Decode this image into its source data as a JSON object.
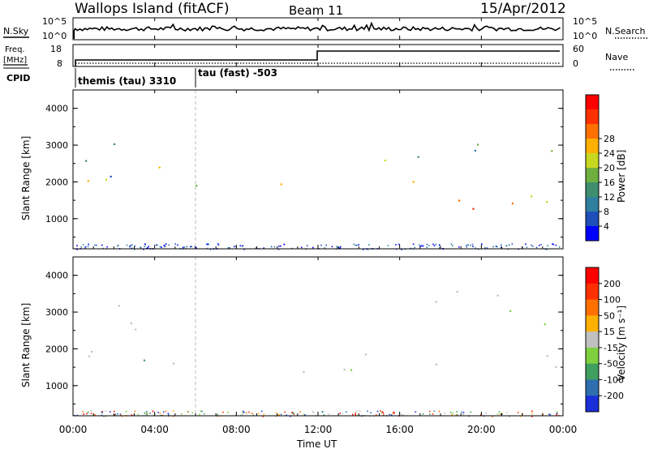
{
  "header": {
    "station": "Wallops Island (fitACF)",
    "beam": "Beam 11",
    "date": "15/Apr/2012"
  },
  "noise_panel": {
    "left_label": "N.Sky",
    "right_label": "N.Search",
    "left_top": "10^5",
    "left_bottom": "10^0",
    "right_top": "10^5",
    "right_bottom": "10^0"
  },
  "freq_panel": {
    "label_line1": "Freq.",
    "label_line2": "[MHz]",
    "left_top": "18",
    "left_bottom": "8",
    "right_top": "60",
    "right_bottom": "0",
    "right_label": "Nave"
  },
  "cpid_panel": {
    "label": "CPID",
    "program1": "themis (tau) 3310",
    "program2": "tau (fast) -503"
  },
  "power_panel": {
    "ylabel": "Slant Range [km]",
    "yticks": [
      "1000",
      "2000",
      "3000",
      "4000"
    ],
    "colorbar_title": "Power [dB]",
    "colorbar_ticks": [
      "4",
      "8",
      "12",
      "16",
      "20",
      "24",
      "28"
    ],
    "colors": [
      "#0000ff",
      "#1f4fb8",
      "#2f7f9f",
      "#3f8f6f",
      "#6faf3f",
      "#c8d820",
      "#ffb000",
      "#ff7000",
      "#ff3000",
      "#ff0000"
    ]
  },
  "velocity_panel": {
    "ylabel": "Slant Range [km]",
    "yticks": [
      "1000",
      "2000",
      "3000",
      "4000"
    ],
    "colorbar_title": "Velocity [m s⁻¹]",
    "colorbar_ticks": [
      "200",
      "100",
      "50",
      "15",
      "-15",
      "-50",
      "-100",
      "-200"
    ],
    "colors": [
      "#1a2fd8",
      "#2f6fb0",
      "#3f9f5f",
      "#7fcf3f",
      "#c0c0c0",
      "#ffb000",
      "#ff7000",
      "#ff3000",
      "#ff0000"
    ]
  },
  "xaxis": {
    "ticks": [
      "00:00",
      "04:00",
      "08:00",
      "12:00",
      "16:00",
      "20:00",
      "00:00"
    ],
    "label": "Time UT"
  },
  "chart_data": {
    "type": "heatmap",
    "title": "Wallops Island (fitACF) Beam 11 15/Apr/2012",
    "x_range_hours": [
      0,
      24
    ],
    "y_range_km": [
      180,
      4500
    ],
    "scatter_bands": [
      {
        "t0": 0.0,
        "t1": 3.5,
        "r0": 1100,
        "r1": 2400,
        "power": 24
      },
      {
        "t0": 0.5,
        "t1": 3.8,
        "r0": 1600,
        "r1": 3600,
        "power": 12
      },
      {
        "t0": 2.0,
        "t1": 6.0,
        "r0": 2400,
        "r1": 3300,
        "power": 16
      },
      {
        "t0": 4.0,
        "t1": 6.5,
        "r0": 2600,
        "r1": 3100,
        "power": 24
      },
      {
        "t0": 4.5,
        "t1": 8.0,
        "r0": 1500,
        "r1": 2100,
        "power": 10
      },
      {
        "t0": 1.0,
        "t1": 2.2,
        "r0": 200,
        "r1": 600,
        "power": 8
      },
      {
        "t0": 3.5,
        "t1": 4.5,
        "r0": 600,
        "r1": 900,
        "power": 10
      },
      {
        "t0": 10.0,
        "t1": 11.9,
        "r0": 800,
        "r1": 2000,
        "power": 14
      },
      {
        "t0": 12.0,
        "t1": 24.0,
        "r0": 1300,
        "r1": 2100,
        "power": 18
      },
      {
        "t0": 12.0,
        "t1": 24.0,
        "r0": 1250,
        "r1": 1700,
        "power": 26
      },
      {
        "t0": 12.5,
        "t1": 24.0,
        "r0": 2600,
        "r1": 3700,
        "power": 10
      }
    ],
    "cpid_change_hour": 6.0,
    "freq_step_hour": 12.0
  }
}
